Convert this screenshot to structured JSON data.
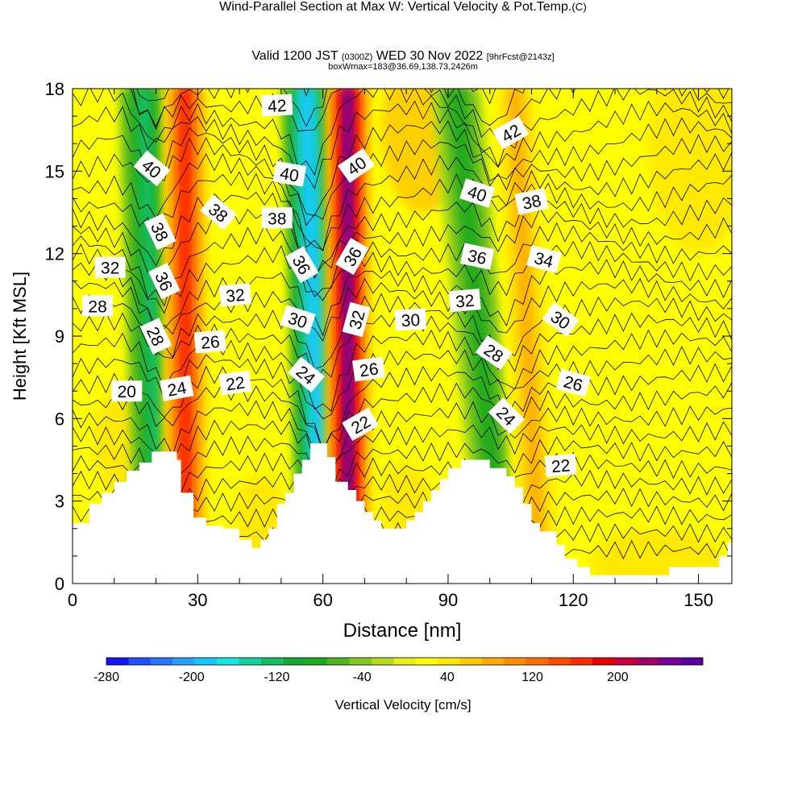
{
  "title": "Wind-Parallel Section at Max W: Vertical Velocity & Pot.Temp.",
  "title_mark": "(C)",
  "subtitle": {
    "prefix": "Valid 1200 JST",
    "utc": "(0300Z)",
    "date": "WED 30 Nov 2022",
    "run": "[9hrFcst@2143z]"
  },
  "box_info": "boxWmax=183@36.69,138.73,2426m",
  "colors": {
    "velocity_scale": [
      "#1414ff",
      "#1e50ff",
      "#2878ff",
      "#28a0ff",
      "#14c8ff",
      "#14e6e6",
      "#14d2a0",
      "#14be64",
      "#14aa32",
      "#1eaa1e",
      "#50b41e",
      "#82c81e",
      "#b4dc1e",
      "#e6f014",
      "#ffff00",
      "#ffe600",
      "#ffc800",
      "#ffaa00",
      "#ff8c00",
      "#ff6e00",
      "#ff4b00",
      "#ff2800",
      "#e60000",
      "#c8003c",
      "#a00064",
      "#780096",
      "#5a00a0"
    ],
    "terrain": "#ffffff"
  },
  "chart_data": {
    "type": "heatmap",
    "xlabel": "Distance [nm]",
    "ylabel": "Height [Kft MSL]",
    "xlim": [
      0,
      158
    ],
    "ylim": [
      0,
      18
    ],
    "x_ticks": [
      0,
      30,
      60,
      90,
      120,
      150
    ],
    "y_ticks": [
      0,
      3,
      6,
      9,
      12,
      15,
      18
    ],
    "colorbar": {
      "label": "Vertical Velocity [cm/s]",
      "range": [
        -280,
        280
      ],
      "tick_labels": [
        -280,
        -200,
        -120,
        -40,
        40,
        120,
        200
      ]
    },
    "updraft_bands": [
      {
        "x_base": 27,
        "x_top": 27,
        "peak": 180
      },
      {
        "x_base": 66,
        "x_top": 66,
        "peak": 260
      },
      {
        "x_base": 112,
        "x_top": 106,
        "peak": 80
      }
    ],
    "downdraft_bands": [
      {
        "x_base": 21,
        "x_top": 17,
        "peak": -120
      },
      {
        "x_base": 60,
        "x_top": 56,
        "peak": -200
      },
      {
        "x_base": 103,
        "x_top": 92,
        "peak": -90
      }
    ],
    "terrain_profile": [
      [
        0,
        2.2
      ],
      [
        4,
        2.2
      ],
      [
        4,
        2.9
      ],
      [
        7,
        2.9
      ],
      [
        7,
        3.3
      ],
      [
        10,
        3.3
      ],
      [
        10,
        3.7
      ],
      [
        13,
        3.7
      ],
      [
        13,
        4.1
      ],
      [
        16,
        4.1
      ],
      [
        16,
        4.4
      ],
      [
        19,
        4.4
      ],
      [
        19,
        4.8
      ],
      [
        25,
        4.8
      ],
      [
        25,
        4.5
      ],
      [
        26,
        4.5
      ],
      [
        26,
        3.3
      ],
      [
        29,
        3.3
      ],
      [
        29,
        2.4
      ],
      [
        32,
        2.4
      ],
      [
        32,
        2.1
      ],
      [
        36,
        2.1
      ],
      [
        36,
        2.0
      ],
      [
        40,
        2.0
      ],
      [
        40,
        1.6
      ],
      [
        43,
        1.6
      ],
      [
        43,
        1.3
      ],
      [
        45,
        1.3
      ],
      [
        45,
        1.6
      ],
      [
        47,
        1.6
      ],
      [
        47,
        2.0
      ],
      [
        49,
        2.0
      ],
      [
        49,
        2.9
      ],
      [
        51,
        2.9
      ],
      [
        51,
        3.3
      ],
      [
        53,
        3.3
      ],
      [
        53,
        4.0
      ],
      [
        55,
        4.0
      ],
      [
        55,
        4.5
      ],
      [
        57,
        4.5
      ],
      [
        57,
        5.1
      ],
      [
        61,
        5.1
      ],
      [
        61,
        4.6
      ],
      [
        63,
        4.6
      ],
      [
        63,
        3.7
      ],
      [
        66,
        3.7
      ],
      [
        66,
        3.4
      ],
      [
        68,
        3.4
      ],
      [
        68,
        3.0
      ],
      [
        70,
        3.0
      ],
      [
        70,
        2.6
      ],
      [
        72,
        2.6
      ],
      [
        72,
        2.3
      ],
      [
        74,
        2.3
      ],
      [
        74,
        2.0
      ],
      [
        80,
        2.0
      ],
      [
        80,
        2.3
      ],
      [
        82,
        2.3
      ],
      [
        82,
        2.6
      ],
      [
        84,
        2.6
      ],
      [
        84,
        3.0
      ],
      [
        86,
        3.0
      ],
      [
        86,
        3.4
      ],
      [
        88,
        3.4
      ],
      [
        88,
        3.8
      ],
      [
        90,
        3.8
      ],
      [
        90,
        4.2
      ],
      [
        93,
        4.2
      ],
      [
        93,
        4.5
      ],
      [
        100,
        4.5
      ],
      [
        100,
        4.2
      ],
      [
        104,
        4.2
      ],
      [
        104,
        3.9
      ],
      [
        106,
        3.9
      ],
      [
        106,
        3.5
      ],
      [
        108,
        3.5
      ],
      [
        108,
        2.9
      ],
      [
        110,
        2.9
      ],
      [
        110,
        2.2
      ],
      [
        112,
        2.2
      ],
      [
        112,
        1.9
      ],
      [
        116,
        1.9
      ],
      [
        116,
        1.4
      ],
      [
        118,
        1.4
      ],
      [
        118,
        0.9
      ],
      [
        121,
        0.9
      ],
      [
        121,
        0.6
      ],
      [
        124,
        0.6
      ],
      [
        124,
        0.3
      ],
      [
        143,
        0.3
      ],
      [
        143,
        0.6
      ],
      [
        155,
        0.6
      ],
      [
        155,
        1.0
      ],
      [
        157,
        1.0
      ],
      [
        157,
        1.5
      ],
      [
        158,
        1.5
      ],
      [
        158,
        0
      ]
    ],
    "isentropes": [
      20,
      22,
      24,
      26,
      28,
      30,
      32,
      34,
      36,
      38,
      40,
      42
    ],
    "contour_labels": [
      {
        "text": "42",
        "x": 49,
        "y": 17.4,
        "angle": -3
      },
      {
        "text": "42",
        "x": 105,
        "y": 16.4,
        "angle": -30
      },
      {
        "text": "40",
        "x": 19,
        "y": 15.1,
        "angle": 40
      },
      {
        "text": "40",
        "x": 52,
        "y": 14.9,
        "angle": 10
      },
      {
        "text": "40",
        "x": 68,
        "y": 15.2,
        "angle": -35
      },
      {
        "text": "40",
        "x": 97,
        "y": 14.2,
        "angle": 18
      },
      {
        "text": "38",
        "x": 21,
        "y": 12.8,
        "angle": 65
      },
      {
        "text": "38",
        "x": 35,
        "y": 13.5,
        "angle": 40
      },
      {
        "text": "38",
        "x": 49,
        "y": 13.3,
        "angle": 0
      },
      {
        "text": "38",
        "x": 110,
        "y": 13.9,
        "angle": -12
      },
      {
        "text": "36",
        "x": 22,
        "y": 11.0,
        "angle": 65
      },
      {
        "text": "36",
        "x": 55,
        "y": 11.6,
        "angle": 60
      },
      {
        "text": "36",
        "x": 67,
        "y": 11.9,
        "angle": -60
      },
      {
        "text": "36",
        "x": 97,
        "y": 11.9,
        "angle": 12
      },
      {
        "text": "34",
        "x": 113,
        "y": 11.8,
        "angle": 15
      },
      {
        "text": "32",
        "x": 9,
        "y": 11.5,
        "angle": 0
      },
      {
        "text": "32",
        "x": 39,
        "y": 10.5,
        "angle": -5
      },
      {
        "text": "32",
        "x": 68,
        "y": 9.6,
        "angle": -75
      },
      {
        "text": "32",
        "x": 94,
        "y": 10.3,
        "angle": -5
      },
      {
        "text": "30",
        "x": 54,
        "y": 9.6,
        "angle": 18
      },
      {
        "text": "30",
        "x": 81,
        "y": 9.6,
        "angle": -3
      },
      {
        "text": "30",
        "x": 117,
        "y": 9.6,
        "angle": 35
      },
      {
        "text": "28",
        "x": 6,
        "y": 10.1,
        "angle": 0
      },
      {
        "text": "28",
        "x": 20,
        "y": 9.0,
        "angle": 65
      },
      {
        "text": "28",
        "x": 101,
        "y": 8.4,
        "angle": 35
      },
      {
        "text": "26",
        "x": 33,
        "y": 8.8,
        "angle": -5
      },
      {
        "text": "26",
        "x": 71,
        "y": 7.8,
        "angle": -8
      },
      {
        "text": "26",
        "x": 120,
        "y": 7.3,
        "angle": 15
      },
      {
        "text": "24",
        "x": 25,
        "y": 7.1,
        "angle": -10
      },
      {
        "text": "24",
        "x": 56,
        "y": 7.6,
        "angle": 40
      },
      {
        "text": "24",
        "x": 104,
        "y": 6.1,
        "angle": 45
      },
      {
        "text": "22",
        "x": 39,
        "y": 7.3,
        "angle": -8
      },
      {
        "text": "22",
        "x": 69,
        "y": 5.8,
        "angle": -30
      },
      {
        "text": "22",
        "x": 117,
        "y": 4.3,
        "angle": -5
      },
      {
        "text": "20",
        "x": 13,
        "y": 7.0,
        "angle": 0
      }
    ]
  }
}
